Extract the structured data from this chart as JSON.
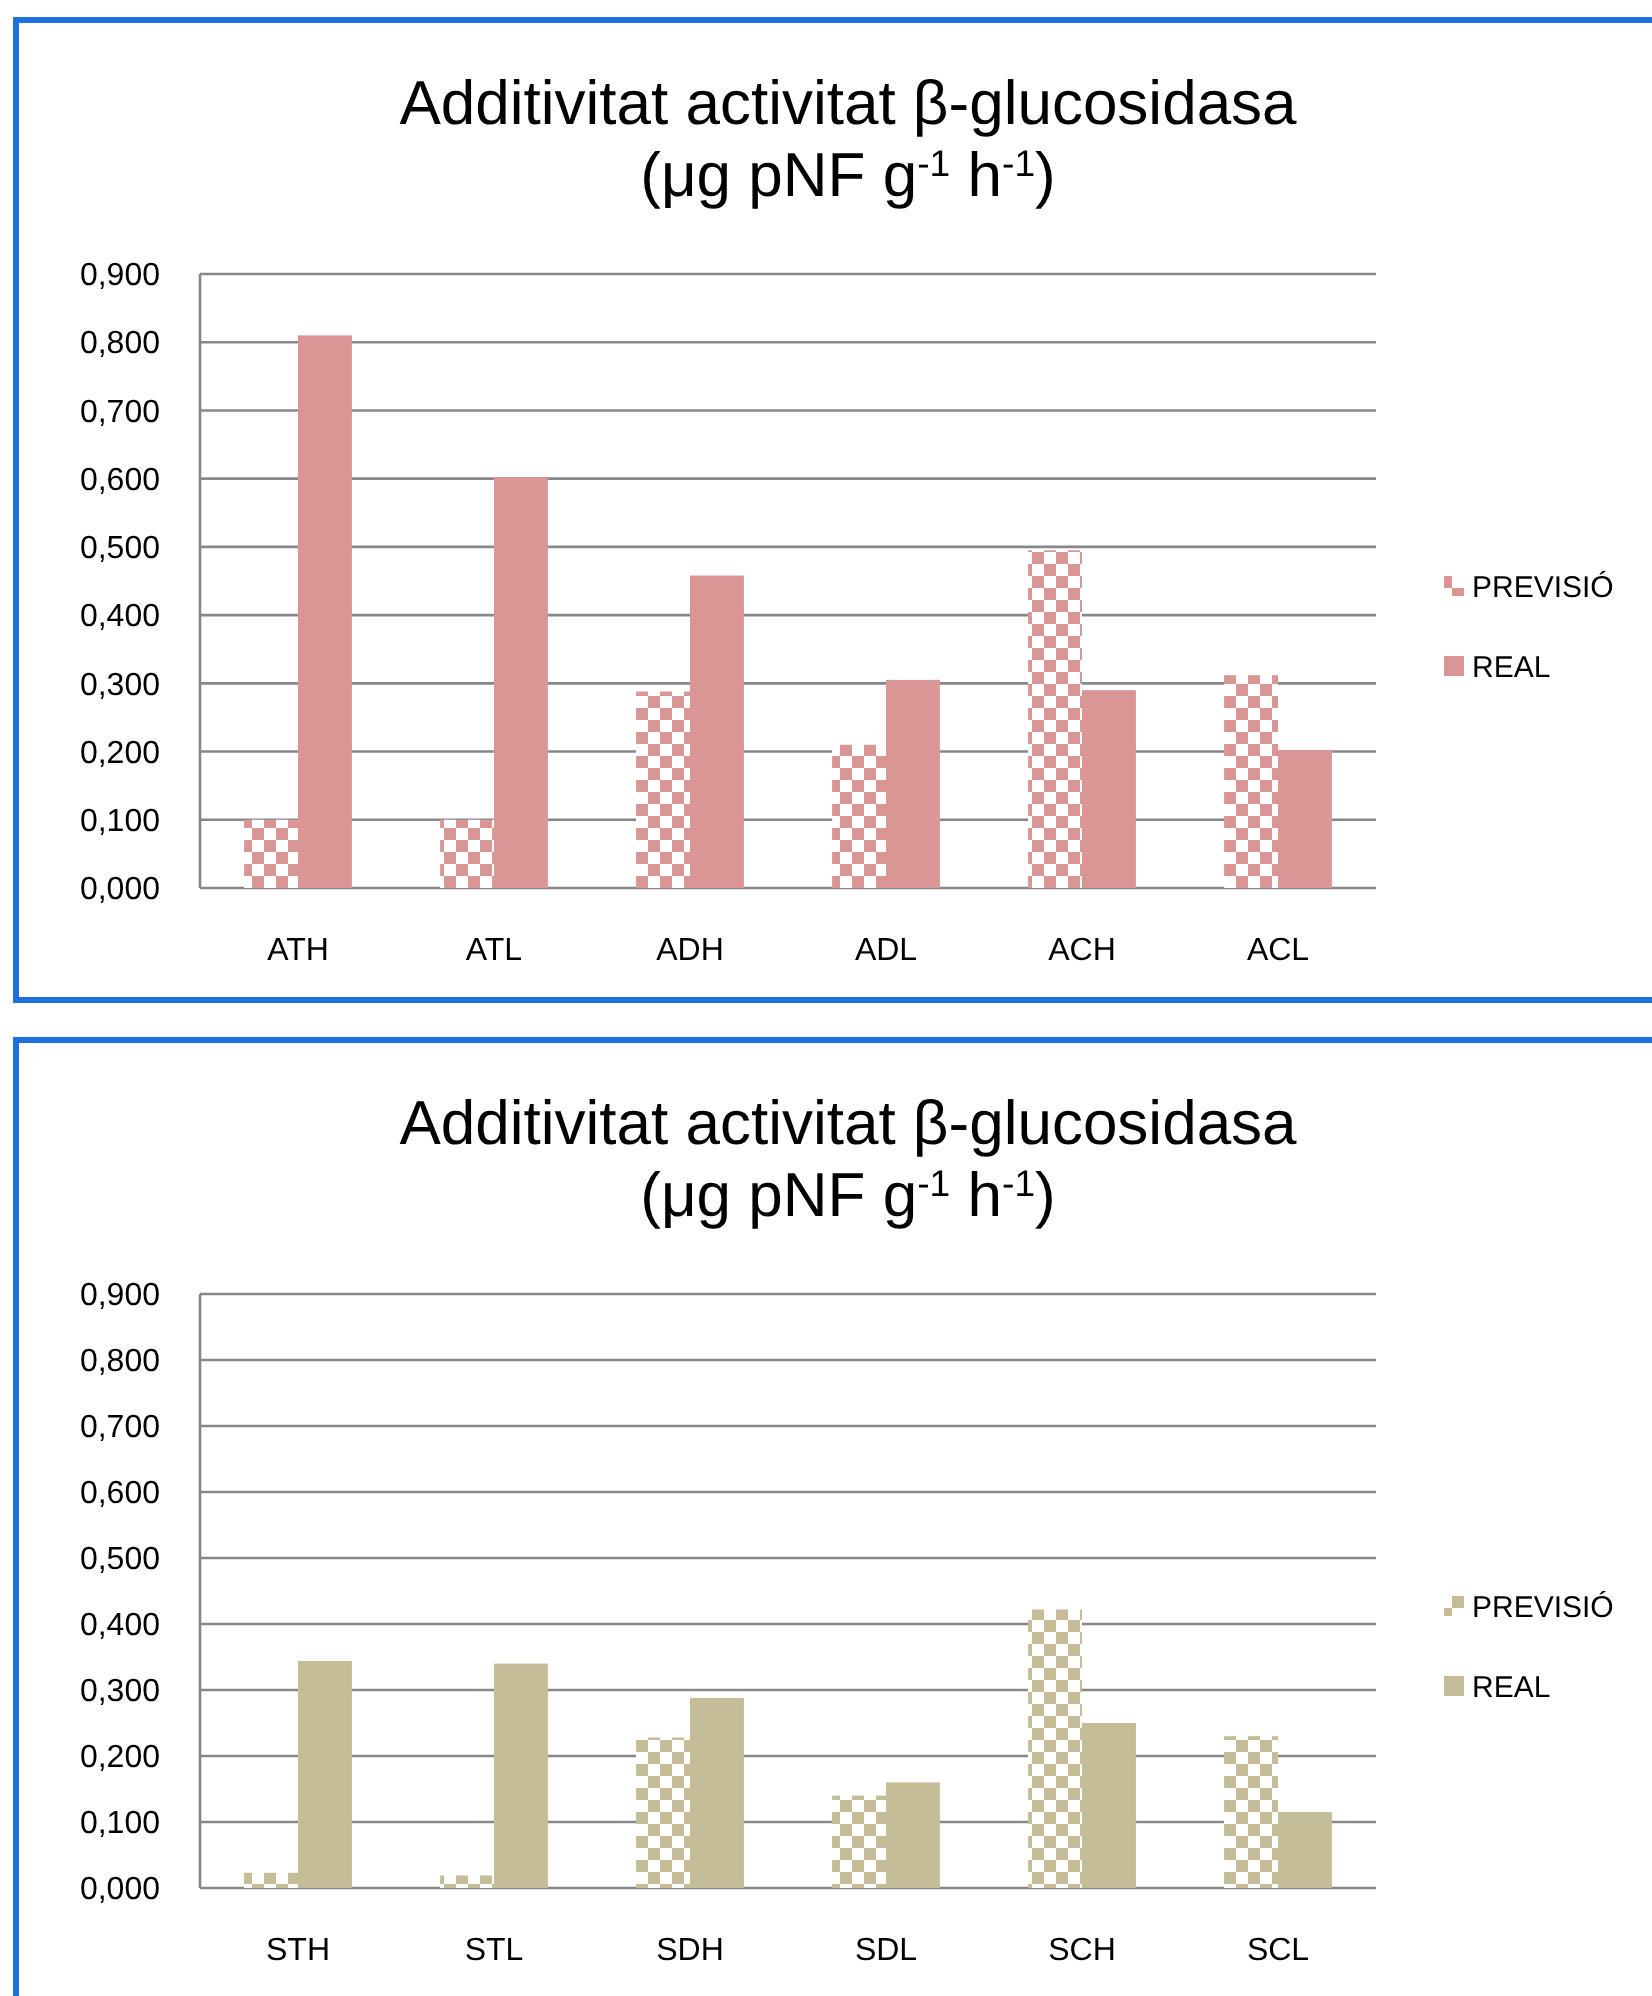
{
  "chart_data": [
    {
      "type": "bar",
      "title": "Additivitat activitat β-glucosidasa\n(μg pNF g$^{-1}$ h$^{-1}$)",
      "categories": [
        "ATH",
        "ATL",
        "ADH",
        "ADL",
        "ACH",
        "ACL"
      ],
      "series": [
        {
          "name": "PREVISIÓ",
          "color": "#d99694",
          "values": [
            0.1,
            0.1,
            0.288,
            0.21,
            0.495,
            0.312
          ]
        },
        {
          "name": "REAL",
          "color": "#d99694",
          "values": [
            0.81,
            0.602,
            0.458,
            0.305,
            0.29,
            0.202
          ]
        }
      ],
      "ylim": [
        0,
        0.9
      ],
      "yticks": [
        {
          "value": 0,
          "label": "0,000"
        },
        {
          "value": 0.1,
          "label": "0,100"
        },
        {
          "value": 0.2,
          "label": "0,200"
        },
        {
          "value": 0.3,
          "label": "0,300"
        },
        {
          "value": 0.4,
          "label": "0,400"
        },
        {
          "value": 0.5,
          "label": "0,500"
        },
        {
          "value": 0.6,
          "label": "0,600"
        },
        {
          "value": 0.7,
          "label": "0,700"
        },
        {
          "value": 0.8,
          "label": "0,800"
        },
        {
          "value": 0.9,
          "label": "0,900"
        }
      ],
      "grid": "y",
      "legend": "right"
    },
    {
      "type": "bar",
      "title": "Additivitat activitat β-glucosidasa\n(μg pNF g$^{-1}$ h$^{-1}$)",
      "categories": [
        "STH",
        "STL",
        "SDH",
        "SDL",
        "SCH",
        "SCL"
      ],
      "series": [
        {
          "name": "PREVISIÓ",
          "color": "#c4bd97",
          "values": [
            0.023,
            0.019,
            0.228,
            0.14,
            0.422,
            0.23
          ]
        },
        {
          "name": "REAL",
          "color": "#c4bd97",
          "values": [
            0.344,
            0.34,
            0.288,
            0.16,
            0.25,
            0.115
          ]
        }
      ],
      "ylim": [
        0,
        0.9
      ],
      "yticks": [
        {
          "value": 0,
          "label": "0,000"
        },
        {
          "value": 0.1,
          "label": "0,100"
        },
        {
          "value": 0.2,
          "label": "0,200"
        },
        {
          "value": 0.3,
          "label": "0,300"
        },
        {
          "value": 0.4,
          "label": "0,400"
        },
        {
          "value": 0.5,
          "label": "0,500"
        },
        {
          "value": 0.6,
          "label": "0,600"
        },
        {
          "value": 0.7,
          "label": "0,700"
        },
        {
          "value": 0.8,
          "label": "0,800"
        },
        {
          "value": 0.9,
          "label": "0,900"
        }
      ],
      "grid": "y",
      "legend": "right"
    }
  ]
}
